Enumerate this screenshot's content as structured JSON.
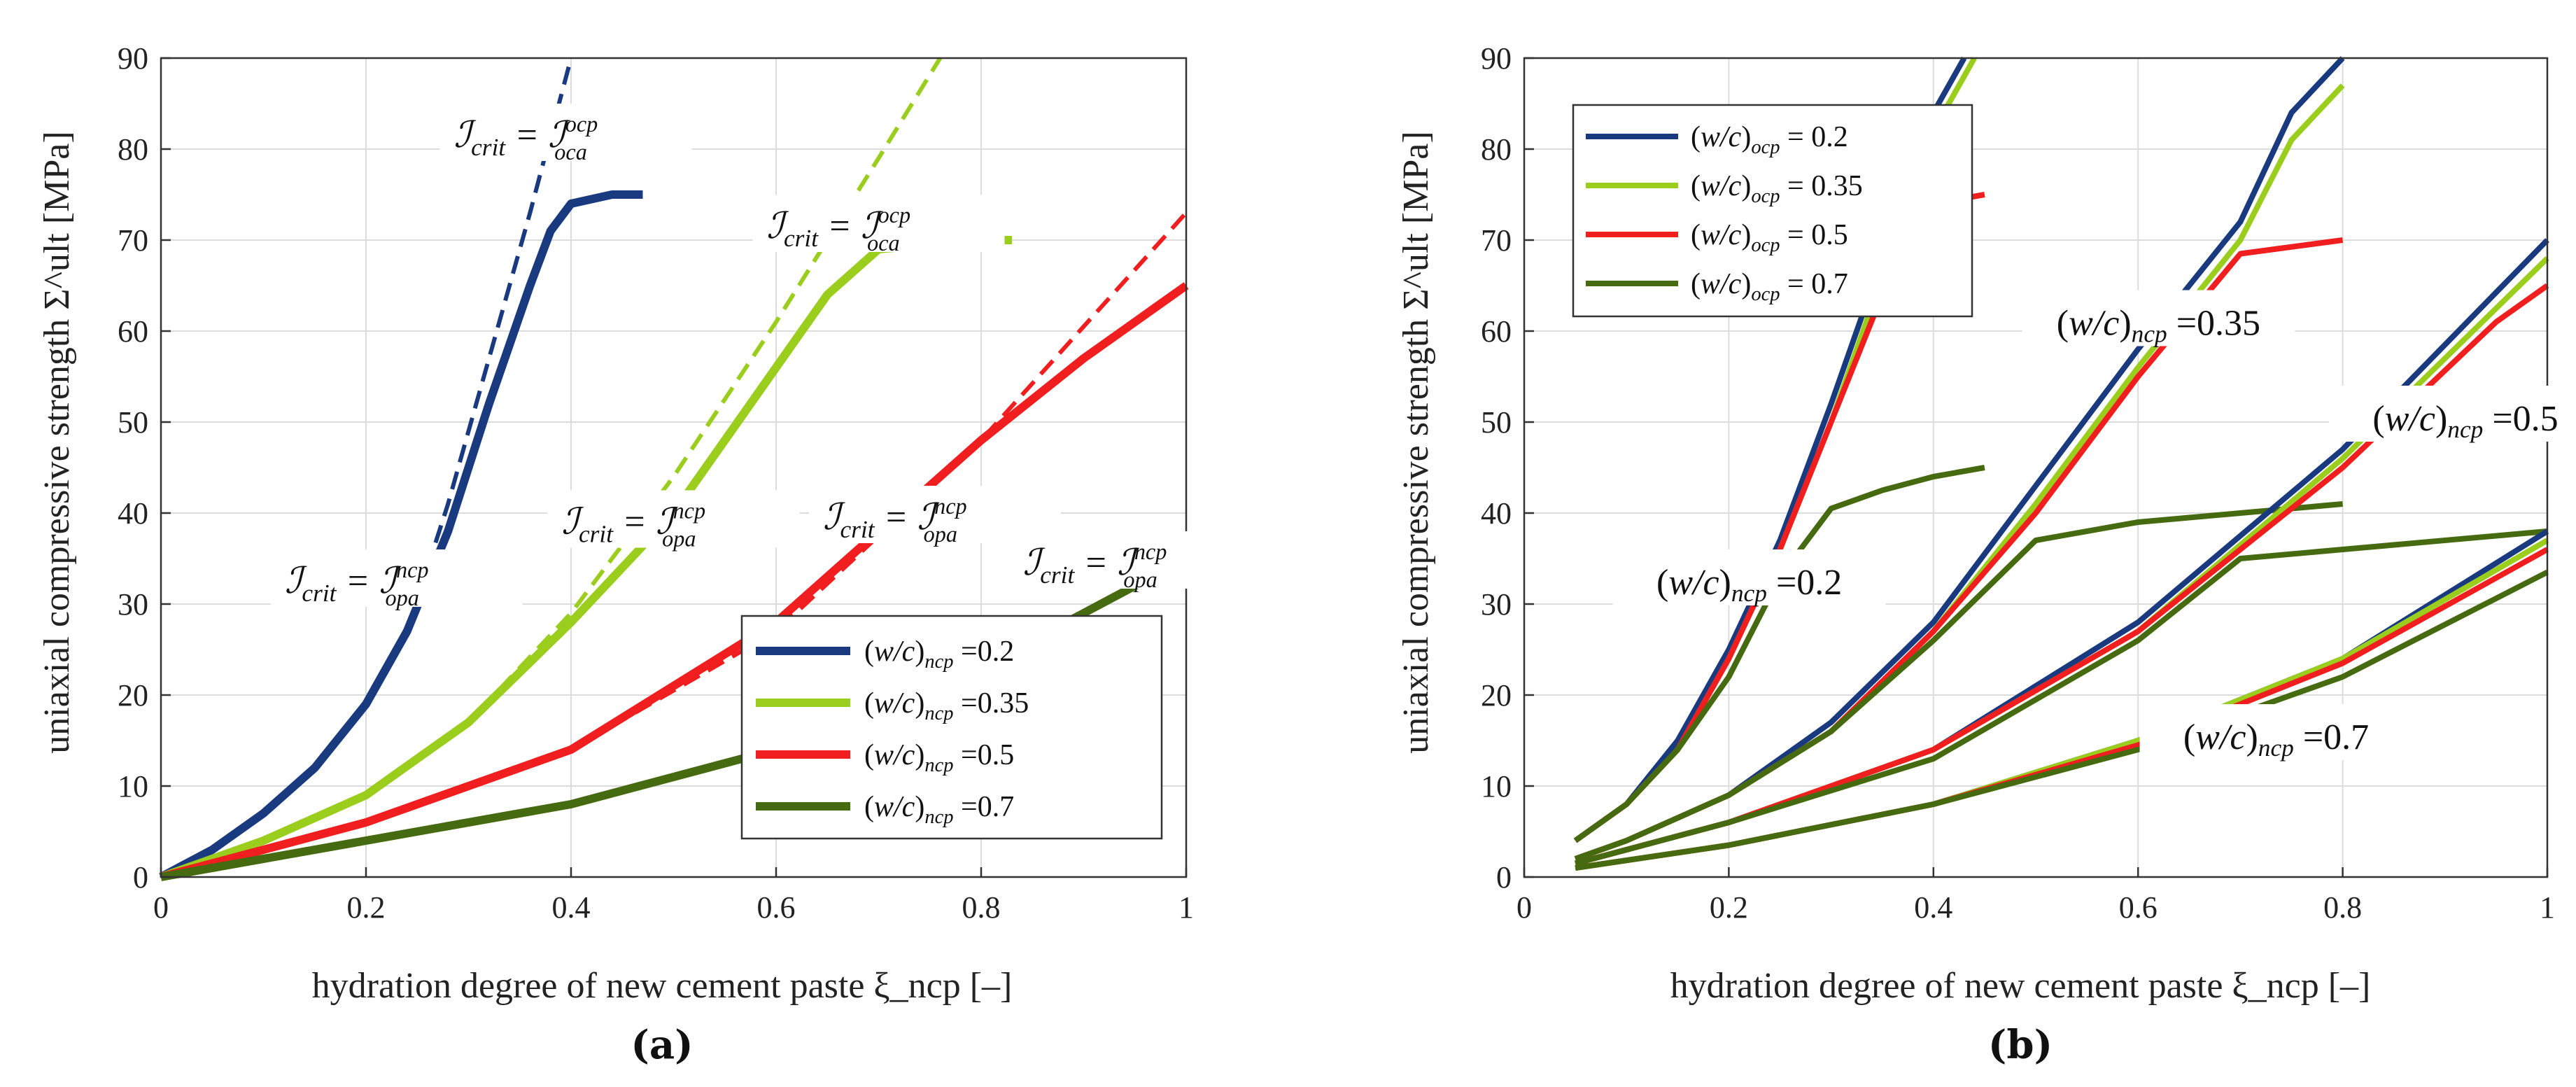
{
  "colors": {
    "blue": "#1a3a80",
    "lightgreen": "#9acd1c",
    "red": "#f01e1e",
    "darkgreen": "#466a10"
  },
  "chart_data": [
    {
      "type": "line",
      "panel_label": "(a)",
      "xlabel": "hydration degree of new cement paste ξ_ncp [–]",
      "ylabel": "uniaxial compressive strength Σ^ult [MPa]",
      "xlim": [
        0,
        1
      ],
      "ylim": [
        0,
        90
      ],
      "xticks": [
        "0",
        "0.2",
        "0.4",
        "0.6",
        "0.8",
        "1"
      ],
      "yticks": [
        "0",
        "10",
        "20",
        "30",
        "40",
        "50",
        "60",
        "70",
        "80",
        "90"
      ],
      "grid": true,
      "legend_position": "bottom-right",
      "series": [
        {
          "name": "(w/c)ncp =0.2",
          "color": "#1a3a80",
          "style": "solid",
          "x": [
            0,
            0.05,
            0.1,
            0.15,
            0.2,
            0.24,
            0.28,
            0.32,
            0.36,
            0.38,
            0.4,
            0.42,
            0.44,
            0.47
          ],
          "y": [
            0,
            3,
            7,
            12,
            19,
            27,
            38,
            52,
            65,
            71,
            74,
            74.5,
            75,
            75
          ]
        },
        {
          "name": "(w/c)ncp =0.35",
          "color": "#9acd1c",
          "style": "solid",
          "x": [
            0,
            0.1,
            0.2,
            0.3,
            0.4,
            0.5,
            0.55,
            0.6,
            0.65,
            0.7,
            0.75,
            0.8,
            0.83
          ],
          "y": [
            0,
            4,
            9,
            17,
            28,
            40,
            48,
            56,
            64,
            69,
            69.5,
            70,
            70
          ]
        },
        {
          "name": "(w/c)ncp =0.5",
          "color": "#f01e1e",
          "style": "solid",
          "x": [
            0,
            0.2,
            0.4,
            0.6,
            0.7,
            0.8,
            0.9,
            0.95,
            1.0
          ],
          "y": [
            0,
            6,
            14,
            28,
            38,
            48,
            57,
            61,
            65
          ]
        },
        {
          "name": "(w/c)ncp =0.7",
          "color": "#466a10",
          "style": "solid",
          "x": [
            0,
            0.2,
            0.4,
            0.6,
            0.8,
            0.9,
            1.0
          ],
          "y": [
            0,
            4,
            8,
            14,
            23,
            29,
            35
          ]
        }
      ],
      "asymptotes": [
        {
          "color": "#1a3a80",
          "x": [
            0,
            0.05,
            0.1,
            0.15,
            0.2,
            0.24,
            0.28,
            0.32,
            0.36,
            0.4
          ],
          "y": [
            0,
            3,
            7,
            12,
            19,
            27,
            41,
            57,
            73,
            90
          ]
        },
        {
          "color": "#9acd1c",
          "x": [
            0,
            0.1,
            0.2,
            0.3,
            0.4,
            0.5,
            0.6,
            0.7,
            0.76
          ],
          "y": [
            0,
            4,
            9,
            17,
            29,
            44,
            61,
            79,
            90
          ]
        },
        {
          "color": "#f01e1e",
          "x": [
            0,
            0.2,
            0.4,
            0.6,
            0.8,
            1.0
          ],
          "y": [
            0,
            6,
            14,
            27,
            48,
            73
          ]
        }
      ],
      "annotations": [
        {
          "text": "ℐcrit = ℐocpoca",
          "main": "ℐ",
          "sub1": "crit",
          "eq": " = ℐ",
          "sup": "ocp",
          "sub2": "oca",
          "at": [
            0.395,
            81
          ]
        },
        {
          "text": "ℐcrit = ℐocpoca",
          "main": "ℐ",
          "sub1": "crit",
          "eq": " = ℐ",
          "sup": "ocp",
          "sub2": "oca",
          "at": [
            0.7,
            71
          ]
        },
        {
          "text": "ℐcrit = ℐncpopa",
          "main": "ℐ",
          "sub1": "crit",
          "eq": " = ℐ",
          "sup": "ncp",
          "sub2": "opa",
          "at": [
            0.23,
            32
          ]
        },
        {
          "text": "ℐcrit = ℐncpopa",
          "main": "ℐ",
          "sub1": "crit",
          "eq": " = ℐ",
          "sup": "ncp",
          "sub2": "opa",
          "at": [
            0.5,
            38.5
          ]
        },
        {
          "text": "ℐcrit = ℐncpopa",
          "main": "ℐ",
          "sub1": "crit",
          "eq": " = ℐ",
          "sup": "ncp",
          "sub2": "opa",
          "at": [
            0.755,
            39
          ]
        },
        {
          "text": "ℐcrit = ℐncpopa",
          "main": "ℐ",
          "sub1": "crit",
          "eq": " = ℐ",
          "sup": "ncp",
          "sub2": "opa",
          "at": [
            0.95,
            34
          ]
        }
      ]
    },
    {
      "type": "line",
      "panel_label": "(b)",
      "xlabel": "hydration degree of new cement paste ξ_ncp [–]",
      "ylabel": "uniaxial compressive strength Σ^ult [MPa]",
      "xlim": [
        0,
        1
      ],
      "ylim": [
        0,
        90
      ],
      "xticks": [
        "0",
        "0.2",
        "0.4",
        "0.6",
        "0.8",
        "1"
      ],
      "yticks": [
        "0",
        "10",
        "20",
        "30",
        "40",
        "50",
        "60",
        "70",
        "80",
        "90"
      ],
      "grid": true,
      "legend_position": "top-left",
      "legend": [
        {
          "name": "(w/c)ocp = 0.2",
          "color": "#1a3a80"
        },
        {
          "name": "(w/c)ocp = 0.35",
          "color": "#9acd1c"
        },
        {
          "name": "(w/c)ocp = 0.5",
          "color": "#f01e1e"
        },
        {
          "name": "(w/c)ocp = 0.7",
          "color": "#466a10"
        }
      ],
      "groups": [
        {
          "label": "(w/c)ncp =0.2",
          "series": [
            {
              "ocp": "0.2",
              "color": "#1a3a80",
              "x": [
                0.05,
                0.1,
                0.15,
                0.2,
                0.25,
                0.3,
                0.35,
                0.4,
                0.43
              ],
              "y": [
                4,
                8,
                15,
                25,
                37,
                52,
                68,
                84,
                90
              ]
            },
            {
              "ocp": "0.35",
              "color": "#9acd1c",
              "x": [
                0.05,
                0.1,
                0.15,
                0.2,
                0.25,
                0.3,
                0.35,
                0.4,
                0.44
              ],
              "y": [
                4,
                8,
                14,
                24,
                36,
                50,
                66,
                82,
                90
              ]
            },
            {
              "ocp": "0.5",
              "color": "#f01e1e",
              "x": [
                0.05,
                0.1,
                0.15,
                0.2,
                0.25,
                0.3,
                0.35,
                0.4,
                0.45
              ],
              "y": [
                4,
                8,
                14,
                24,
                36,
                50,
                64,
                74,
                75
              ]
            },
            {
              "ocp": "0.7",
              "color": "#466a10",
              "x": [
                0.05,
                0.1,
                0.15,
                0.2,
                0.25,
                0.3,
                0.35,
                0.4,
                0.45
              ],
              "y": [
                4,
                8,
                14,
                22,
                33,
                40.5,
                42.5,
                44,
                45
              ]
            }
          ]
        },
        {
          "label": "(w/c)ncp =0.35",
          "series": [
            {
              "ocp": "0.2",
              "color": "#1a3a80",
              "x": [
                0.05,
                0.1,
                0.2,
                0.3,
                0.4,
                0.5,
                0.6,
                0.7,
                0.75,
                0.8
              ],
              "y": [
                2,
                4,
                9,
                17,
                28,
                43,
                58,
                72,
                84,
                90
              ]
            },
            {
              "ocp": "0.35",
              "color": "#9acd1c",
              "x": [
                0.05,
                0.1,
                0.2,
                0.3,
                0.4,
                0.5,
                0.6,
                0.7,
                0.75,
                0.8
              ],
              "y": [
                2,
                4,
                9,
                16,
                27,
                41,
                56,
                70,
                81,
                87
              ]
            },
            {
              "ocp": "0.5",
              "color": "#f01e1e",
              "x": [
                0.05,
                0.1,
                0.2,
                0.3,
                0.4,
                0.5,
                0.6,
                0.7,
                0.8
              ],
              "y": [
                2,
                4,
                9,
                16,
                27,
                40,
                55,
                68.5,
                70
              ]
            },
            {
              "ocp": "0.7",
              "color": "#466a10",
              "x": [
                0.05,
                0.1,
                0.2,
                0.3,
                0.4,
                0.5,
                0.6,
                0.7,
                0.8
              ],
              "y": [
                2,
                4,
                9,
                16,
                26,
                37,
                39,
                40,
                41
              ]
            }
          ]
        },
        {
          "label": "(w/c)ncp =0.5",
          "series": [
            {
              "ocp": "0.2",
              "color": "#1a3a80",
              "x": [
                0.05,
                0.2,
                0.4,
                0.6,
                0.8,
                1.0
              ],
              "y": [
                1.5,
                6,
                14,
                28,
                47,
                70
              ]
            },
            {
              "ocp": "0.35",
              "color": "#9acd1c",
              "x": [
                0.05,
                0.2,
                0.4,
                0.6,
                0.8,
                1.0
              ],
              "y": [
                1.5,
                6,
                14,
                27,
                46,
                68
              ]
            },
            {
              "ocp": "0.5",
              "color": "#f01e1e",
              "x": [
                0.05,
                0.2,
                0.4,
                0.6,
                0.8,
                0.95,
                1.0
              ],
              "y": [
                1.5,
                6,
                14,
                27,
                45,
                61,
                65
              ]
            },
            {
              "ocp": "0.7",
              "color": "#466a10",
              "x": [
                0.05,
                0.2,
                0.4,
                0.6,
                0.7,
                0.8,
                1.0
              ],
              "y": [
                1.5,
                6,
                13,
                26,
                35,
                36,
                38
              ]
            }
          ]
        },
        {
          "label": "(w/c)ncp =0.7",
          "series": [
            {
              "ocp": "0.2",
              "color": "#1a3a80",
              "x": [
                0.05,
                0.2,
                0.4,
                0.6,
                0.8,
                1.0
              ],
              "y": [
                1,
                3.5,
                8,
                15,
                24,
                38
              ]
            },
            {
              "ocp": "0.35",
              "color": "#9acd1c",
              "x": [
                0.05,
                0.2,
                0.4,
                0.6,
                0.8,
                1.0
              ],
              "y": [
                1,
                3.5,
                8,
                15,
                24,
                37
              ]
            },
            {
              "ocp": "0.5",
              "color": "#f01e1e",
              "x": [
                0.05,
                0.2,
                0.4,
                0.6,
                0.8,
                1.0
              ],
              "y": [
                1,
                3.5,
                8,
                14.5,
                23.5,
                36
              ]
            },
            {
              "ocp": "0.7",
              "color": "#466a10",
              "x": [
                0.05,
                0.2,
                0.4,
                0.6,
                0.8,
                1.0
              ],
              "y": [
                1,
                3.5,
                8,
                14,
                22,
                33.5
              ]
            }
          ]
        }
      ]
    }
  ]
}
